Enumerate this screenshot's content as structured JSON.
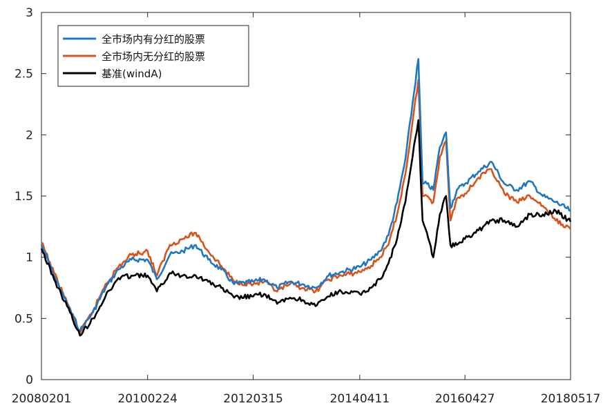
{
  "chart_data": {
    "type": "line",
    "title": "",
    "xlabel": "",
    "ylabel": "",
    "xlim": [
      "20080201",
      "20180517"
    ],
    "ylim": [
      0,
      3
    ],
    "grid": false,
    "legend_position": "top-left",
    "xticks": [
      "20080201",
      "20100224",
      "20120315",
      "20140411",
      "20160427",
      "20180517"
    ],
    "yticks": [
      "0",
      "0.5",
      "1",
      "1.5",
      "2",
      "2.5",
      "3"
    ],
    "x": [
      "20080201",
      "20080501",
      "20080801",
      "20081101",
      "20090201",
      "20090501",
      "20090801",
      "20091101",
      "20100224",
      "20100501",
      "20100801",
      "20101101",
      "20110201",
      "20110501",
      "20110801",
      "20111101",
      "20120315",
      "20120601",
      "20120901",
      "20121201",
      "20130301",
      "20130601",
      "20130901",
      "20131201",
      "20140411",
      "20140701",
      "20140901",
      "20141101",
      "20150101",
      "20150301",
      "20150601",
      "20150701",
      "20150801",
      "20150915",
      "20151101",
      "20151215",
      "20160115",
      "20160301",
      "20160427",
      "20160801",
      "20161101",
      "20170201",
      "20170501",
      "20170801",
      "20171101",
      "20180201",
      "20180517"
    ],
    "series": [
      {
        "name": "全市场内有分红的股票",
        "color": "#1f77c4",
        "values": [
          1.1,
          0.85,
          0.62,
          0.4,
          0.55,
          0.75,
          0.9,
          0.98,
          0.98,
          0.82,
          1.02,
          1.05,
          1.1,
          0.98,
          0.9,
          0.78,
          0.8,
          0.82,
          0.75,
          0.8,
          0.78,
          0.75,
          0.85,
          0.88,
          0.92,
          0.98,
          1.05,
          1.18,
          1.45,
          1.8,
          2.62,
          1.6,
          1.6,
          1.55,
          1.9,
          2.02,
          1.4,
          1.55,
          1.6,
          1.7,
          1.78,
          1.6,
          1.55,
          1.62,
          1.5,
          1.45,
          1.38
        ]
      },
      {
        "name": "全市场内无分红的股票",
        "color": "#d95319",
        "values": [
          1.12,
          0.87,
          0.63,
          0.38,
          0.56,
          0.78,
          0.92,
          1.02,
          1.05,
          0.85,
          1.1,
          1.15,
          1.2,
          1.05,
          0.93,
          0.8,
          0.78,
          0.8,
          0.72,
          0.78,
          0.75,
          0.72,
          0.82,
          0.85,
          0.88,
          0.93,
          1.0,
          1.1,
          1.35,
          1.68,
          2.45,
          1.5,
          1.5,
          1.45,
          1.82,
          1.95,
          1.3,
          1.48,
          1.52,
          1.65,
          1.72,
          1.52,
          1.45,
          1.5,
          1.42,
          1.3,
          1.23
        ]
      },
      {
        "name": "基准(windA)",
        "color": "#000000",
        "values": [
          1.07,
          0.82,
          0.6,
          0.36,
          0.5,
          0.68,
          0.83,
          0.85,
          0.85,
          0.72,
          0.87,
          0.85,
          0.85,
          0.8,
          0.75,
          0.67,
          0.68,
          0.7,
          0.62,
          0.67,
          0.65,
          0.6,
          0.68,
          0.72,
          0.7,
          0.75,
          0.82,
          0.95,
          1.15,
          1.45,
          2.12,
          1.3,
          1.2,
          1.0,
          1.35,
          1.5,
          1.1,
          1.1,
          1.15,
          1.22,
          1.3,
          1.3,
          1.25,
          1.35,
          1.35,
          1.38,
          1.29
        ]
      }
    ]
  }
}
